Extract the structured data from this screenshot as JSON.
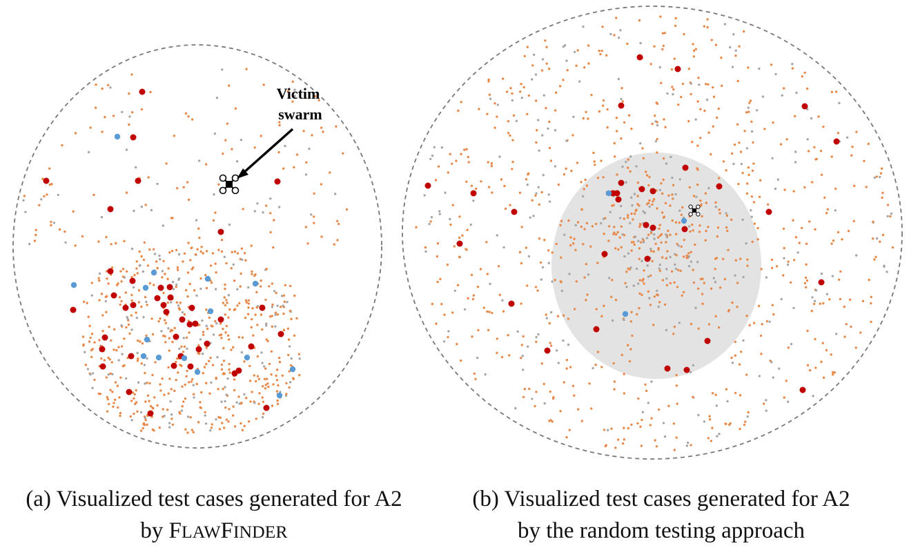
{
  "panel_a": {
    "annotation": {
      "line1": "Victim",
      "line2": "swarm"
    },
    "caption": {
      "line1": "(a) Visualized test cases generated for A2",
      "line2_prefix": "by ",
      "tool_F": "F",
      "tool_law": "LAW",
      "tool_F2": "F",
      "tool_inder": "INDER"
    }
  },
  "panel_b": {
    "caption": {
      "line1": "(b) Visualized test cases generated for A2",
      "line2": "by the random testing approach"
    }
  },
  "colors": {
    "boundary": "#777777",
    "region_fill": "#e3e3e3",
    "orange_point": "#e8894a",
    "gray_point": "#a6a6a6",
    "blue_point": "#5b9bd5",
    "red_point": "#c00000",
    "drone": "#000000"
  },
  "icons": {
    "victim_swarm": "drone-icon"
  }
}
